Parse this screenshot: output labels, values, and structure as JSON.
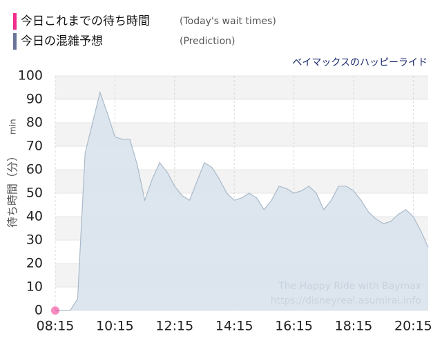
{
  "chart_data": {
    "type": "area",
    "subtitle": "ベイマックスのハッピーライド",
    "ylabel": "待ち時間（分）",
    "ylabel_unit": "min",
    "annotations": [
      "The Happy Ride with Baymax",
      "https://disneyreal.asumirai.info"
    ],
    "xlim": [
      495,
      1245
    ],
    "xticks": [
      {
        "value": 495,
        "label": "08:15"
      },
      {
        "value": 615,
        "label": "10:15"
      },
      {
        "value": 735,
        "label": "12:15"
      },
      {
        "value": 855,
        "label": "14:15"
      },
      {
        "value": 975,
        "label": "16:15"
      },
      {
        "value": 1095,
        "label": "18:15"
      },
      {
        "value": 1215,
        "label": "20:15"
      }
    ],
    "ylim": [
      0,
      100
    ],
    "yticks": [
      0,
      10,
      20,
      30,
      40,
      50,
      60,
      70,
      80,
      90,
      100
    ],
    "grid": true,
    "series": [
      {
        "name": "今日これまでの待ち時間",
        "name_en": "(Today's wait times)",
        "color": "#f02c8c",
        "style": "point",
        "x": [
          495
        ],
        "values": [
          0
        ]
      },
      {
        "name": "今日の混雑予想",
        "name_en": "(Prediction)",
        "color": "#6a7499",
        "style": "area",
        "x": [
          495,
          510,
          525,
          540,
          555,
          570,
          585,
          600,
          615,
          630,
          645,
          660,
          675,
          690,
          705,
          720,
          735,
          750,
          765,
          780,
          795,
          810,
          825,
          840,
          855,
          870,
          885,
          900,
          915,
          930,
          945,
          960,
          975,
          990,
          1005,
          1020,
          1035,
          1050,
          1065,
          1080,
          1095,
          1110,
          1125,
          1140,
          1155,
          1170,
          1185,
          1200,
          1215,
          1230,
          1245
        ],
        "values": [
          0,
          0,
          0,
          5,
          67,
          80,
          93,
          84,
          74,
          73,
          73,
          62,
          47,
          56,
          63,
          59,
          53,
          49,
          47,
          55,
          63,
          61,
          56,
          50,
          47,
          48,
          50,
          48,
          43,
          47,
          53,
          52,
          50,
          51,
          53,
          50,
          43,
          47,
          53,
          53,
          51,
          47,
          42,
          39,
          37,
          38,
          41,
          43,
          40,
          34,
          27
        ]
      }
    ]
  }
}
